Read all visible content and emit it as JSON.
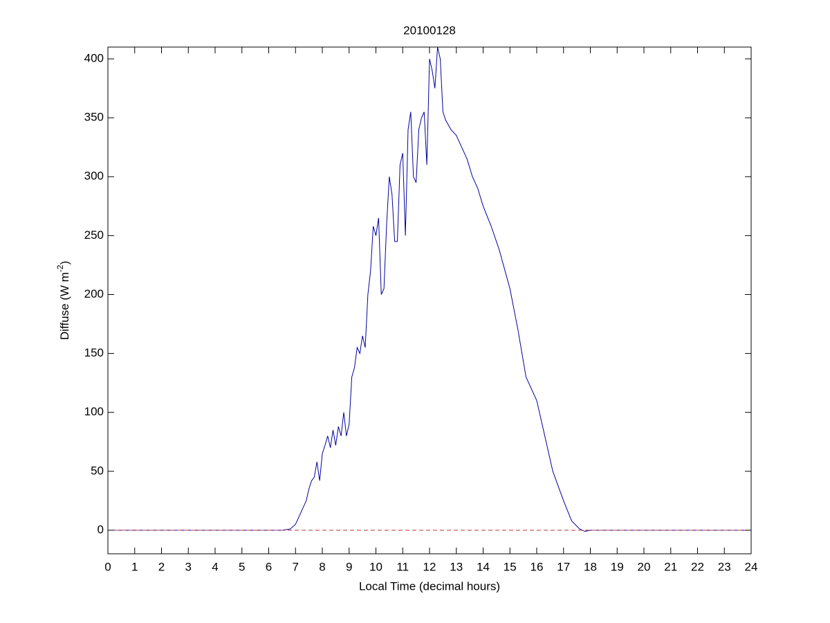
{
  "chart_data": {
    "type": "line",
    "title": "20100128",
    "xlabel": "Local Time (decimal hours)",
    "ylabel": {
      "text": "Diffuse (W m",
      "superscript": "-2",
      "suffix": ")"
    },
    "xlim": [
      0,
      24
    ],
    "xticks": [
      0,
      1,
      2,
      3,
      4,
      5,
      6,
      7,
      8,
      9,
      10,
      11,
      12,
      13,
      14,
      15,
      16,
      17,
      18,
      19,
      20,
      21,
      22,
      23,
      24
    ],
    "ylim": [
      -20,
      410
    ],
    "yticks": [
      0,
      50,
      100,
      150,
      200,
      250,
      300,
      350,
      400
    ],
    "grid": false,
    "series": [
      {
        "color": "#0000a0",
        "line_style": "solid",
        "x": [
          0,
          6.5,
          6.8,
          7.0,
          7.2,
          7.4,
          7.5,
          7.6,
          7.7,
          7.8,
          7.9,
          8.0,
          8.1,
          8.2,
          8.3,
          8.4,
          8.5,
          8.6,
          8.7,
          8.8,
          8.9,
          9.0,
          9.1,
          9.2,
          9.3,
          9.4,
          9.5,
          9.6,
          9.7,
          9.8,
          9.9,
          10.0,
          10.1,
          10.2,
          10.3,
          10.4,
          10.5,
          10.6,
          10.7,
          10.8,
          10.9,
          11.0,
          11.1,
          11.2,
          11.3,
          11.4,
          11.5,
          11.6,
          11.7,
          11.8,
          11.9,
          12.0,
          12.1,
          12.2,
          12.3,
          12.4,
          12.5,
          12.6,
          12.8,
          13.0,
          13.2,
          13.4,
          13.6,
          13.8,
          14.0,
          14.3,
          14.6,
          15.0,
          15.3,
          15.6,
          16.0,
          16.3,
          16.6,
          17.0,
          17.3,
          17.6,
          17.8,
          18,
          24
        ],
        "values": [
          0,
          0,
          1,
          5,
          15,
          25,
          35,
          42,
          45,
          58,
          42,
          65,
          72,
          80,
          70,
          85,
          72,
          88,
          80,
          100,
          80,
          90,
          130,
          138,
          155,
          150,
          165,
          155,
          200,
          220,
          258,
          250,
          265,
          200,
          205,
          260,
          300,
          285,
          245,
          245,
          310,
          320,
          250,
          340,
          355,
          300,
          295,
          340,
          350,
          355,
          310,
          400,
          390,
          375,
          410,
          400,
          355,
          348,
          340,
          335,
          325,
          315,
          300,
          290,
          275,
          258,
          238,
          205,
          170,
          130,
          110,
          80,
          50,
          25,
          8,
          1,
          -1,
          0,
          0
        ]
      },
      {
        "color": "#c03030",
        "line_style": "dashed",
        "x": [
          0,
          24
        ],
        "values": [
          0,
          0
        ]
      }
    ]
  }
}
